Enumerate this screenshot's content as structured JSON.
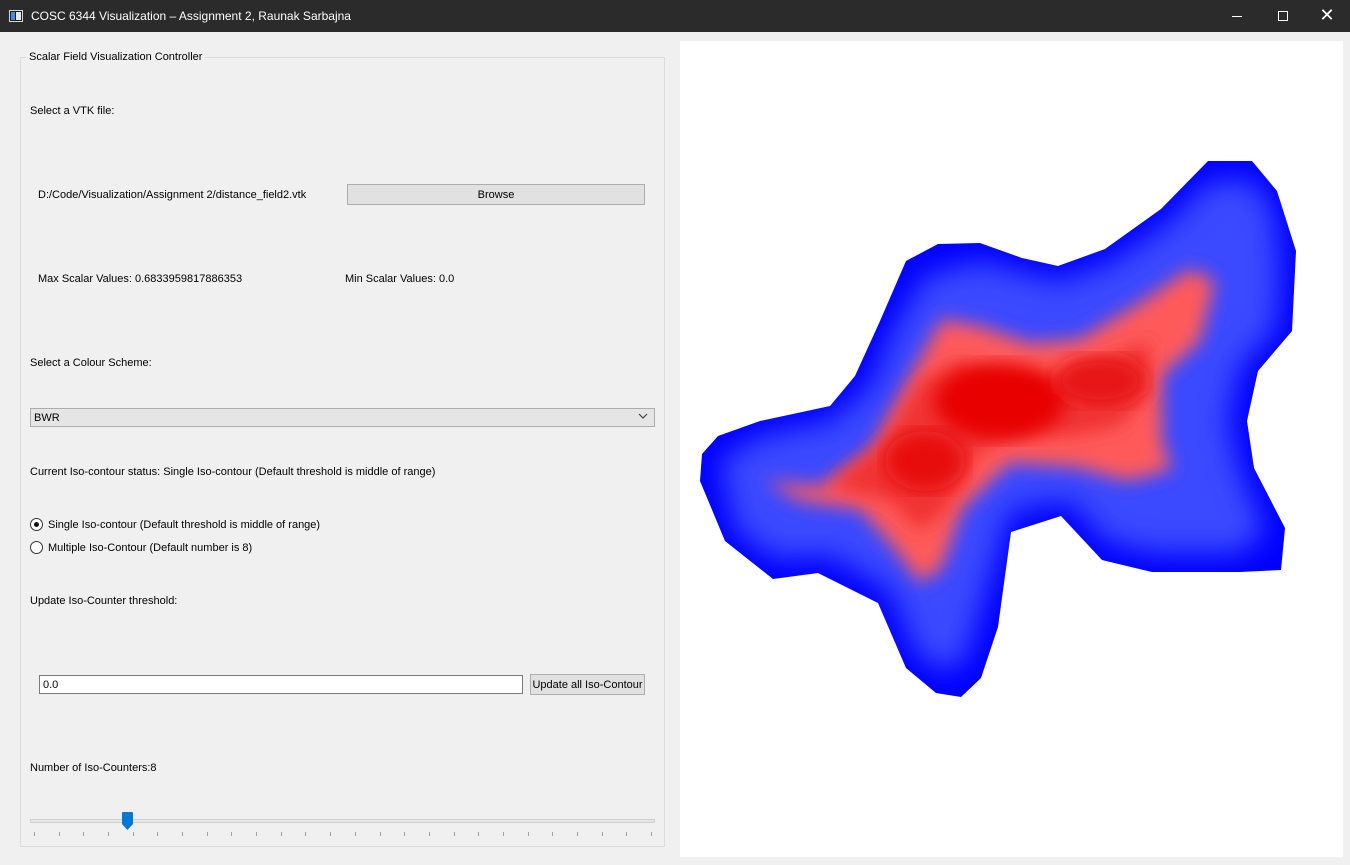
{
  "window": {
    "title": "COSC 6344 Visualization – Assignment 2, Raunak Sarbajna",
    "minimize_glyph": "—",
    "close_glyph": "✕"
  },
  "controller": {
    "group_title": "Scalar Field Visualization Controller",
    "select_file_label": "Select a VTK file:",
    "file_path": "D:/Code/Visualization/Assignment 2/distance_field2.vtk",
    "browse_label": "Browse",
    "max_scalar_label": "Max Scalar Values: 0.6833959817886353",
    "min_scalar_label": "Min Scalar Values: 0.0",
    "colour_scheme_label": "Select a Colour Scheme:",
    "colour_scheme_value": "BWR",
    "iso_status_label": "Current Iso-contour status: Single Iso-contour (Default threshold is middle of range)",
    "radio_single_label": "Single Iso-contour (Default threshold is middle of range)",
    "radio_multiple_label": "Multiple Iso-Contour (Default number is 8)",
    "radio_single_checked": true,
    "update_threshold_label": "Update Iso-Counter threshold:",
    "threshold_value": "0.0",
    "update_all_label": "Update all Iso-Contour",
    "num_counters_label": "Number of Iso-Counters:8",
    "slider_value": 8,
    "slider_min": 1,
    "slider_max": 50
  },
  "colors": {
    "titlebar": "#2b2b2b",
    "slider_handle": "#0078d7",
    "field_blue": "#0000ff",
    "field_red": "#ff0000"
  },
  "icons": {
    "app": "app-window-icon",
    "minimize": "minimize-icon",
    "maximize": "maximize-icon",
    "close": "close-icon",
    "dropdown": "chevron-down-icon"
  }
}
